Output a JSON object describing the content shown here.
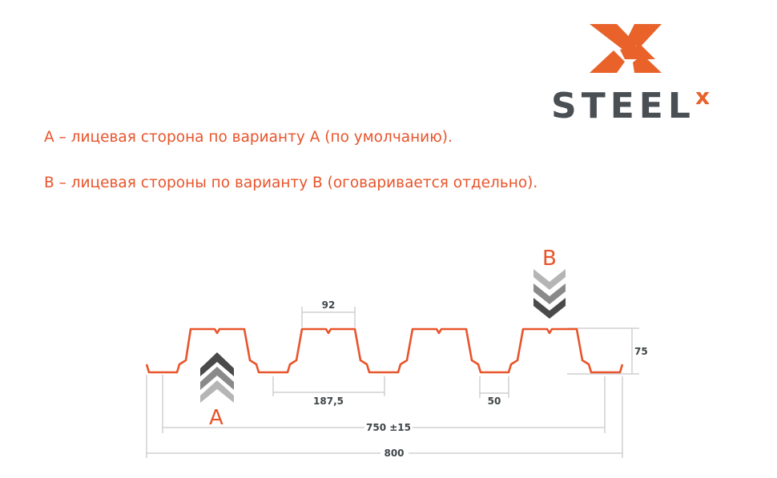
{
  "logo": {
    "text": "STEEL",
    "superscript": "x",
    "colors": {
      "orange": "#e8622a",
      "gray": "#4a4f54"
    }
  },
  "notes": [
    "А – лицевая сторона по варианту А (по умолчанию).",
    "В – лицевая стороны по варианту В (оговаривается отдельно)."
  ],
  "diagram": {
    "side_labels": {
      "a": "A",
      "b": "B"
    },
    "dimensions": {
      "top_width": "92",
      "pitch": "187,5",
      "bottom_width": "50",
      "height": "75",
      "working_width": "750 ±15",
      "total_width": "800"
    },
    "colors": {
      "profile": "#e8542b",
      "dim_lines": "#c8c8c8",
      "text": "#e8542b"
    }
  }
}
